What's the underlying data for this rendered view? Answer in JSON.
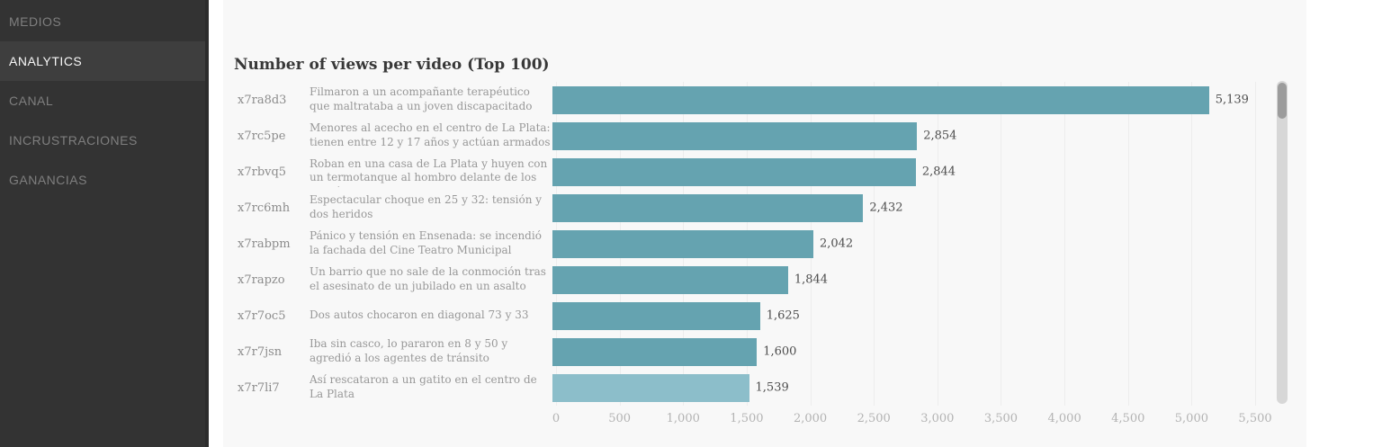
{
  "sidebar": {
    "items": [
      {
        "label": "MEDIOS",
        "active": false
      },
      {
        "label": "ANALYTICS",
        "active": true
      },
      {
        "label": "CANAL",
        "active": false
      },
      {
        "label": "INCRUSTRACIONES",
        "active": false
      },
      {
        "label": "GANANCIAS",
        "active": false
      }
    ]
  },
  "main": {
    "title": "Number of views per video (Top 100)"
  },
  "chart_data": {
    "type": "bar",
    "orientation": "horizontal",
    "title": "Number of views per video (Top 100)",
    "xlim": [
      0,
      5620
    ],
    "grid": true,
    "bar_color": "#65a3b0",
    "highlight_bar_color": "#8cbeca",
    "x_ticks": [
      {
        "value": 0,
        "label": "0"
      },
      {
        "value": 500,
        "label": "500"
      },
      {
        "value": 1000,
        "label": "1,000"
      },
      {
        "value": 1500,
        "label": "1,500"
      },
      {
        "value": 2000,
        "label": "2,000"
      },
      {
        "value": 2500,
        "label": "2,500"
      },
      {
        "value": 3000,
        "label": "3,000"
      },
      {
        "value": 3500,
        "label": "3,500"
      },
      {
        "value": 4000,
        "label": "4,000"
      },
      {
        "value": 4500,
        "label": "4,500"
      },
      {
        "value": 5000,
        "label": "5,000"
      },
      {
        "value": 5500,
        "label": "5,500"
      }
    ],
    "rows": [
      {
        "id": "x7ra8d3",
        "label": "Filmaron a un acompañante terapéutico que maltrataba a un joven discapacitado",
        "value": 5139,
        "value_label": "5,139",
        "highlighted": false
      },
      {
        "id": "x7rc5pe",
        "label": "Menores al acecho en el centro de La Plata: tienen entre 12 y 17 años y actúan armados",
        "value": 2854,
        "value_label": "2,854",
        "highlighted": false
      },
      {
        "id": "x7rbvq5",
        "label": "Roban en una casa de La Plata y huyen con un termotanque al hombro delante de los policías",
        "value": 2844,
        "value_label": "2,844",
        "highlighted": false
      },
      {
        "id": "x7rc6mh",
        "label": "Espectacular choque en 25 y 32: tensión y dos heridos",
        "value": 2432,
        "value_label": "2,432",
        "highlighted": false
      },
      {
        "id": "x7rabpm",
        "label": "Pánico y tensión en Ensenada: se incendió la fachada del Cine Teatro Municipal",
        "value": 2042,
        "value_label": "2,042",
        "highlighted": false
      },
      {
        "id": "x7rapzo",
        "label": "Un barrio que no sale de la conmoción tras el asesinato de un jubilado en un asalto",
        "value": 1844,
        "value_label": "1,844",
        "highlighted": false
      },
      {
        "id": "x7r7oc5",
        "label": "Dos autos chocaron en diagonal 73 y 33",
        "value": 1625,
        "value_label": "1,625",
        "highlighted": false
      },
      {
        "id": "x7r7jsn",
        "label": "Iba sin casco, lo pararon en 8 y 50 y agredió a los agentes de tránsito",
        "value": 1600,
        "value_label": "1,600",
        "highlighted": false
      },
      {
        "id": "x7r7li7",
        "label": "Así rescataron a un gatito en el centro de La Plata",
        "value": 1539,
        "value_label": "1,539",
        "highlighted": true
      }
    ]
  }
}
